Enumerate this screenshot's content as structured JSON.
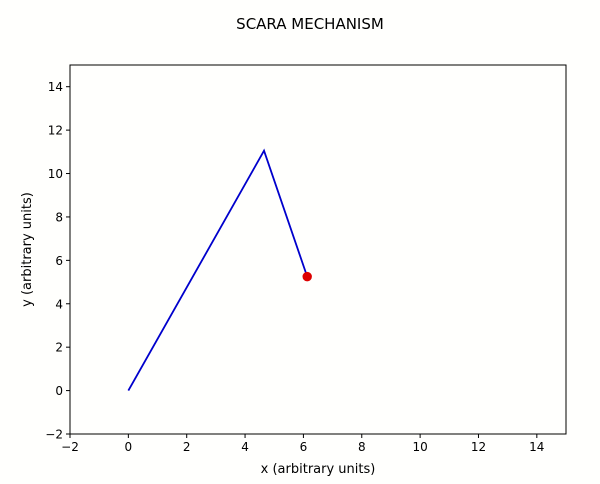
{
  "chart_data": {
    "type": "line",
    "title": "SCARA MECHANISM",
    "xlabel": "x (arbitrary units)",
    "ylabel": "y (arbitrary units)",
    "xlim": [
      -2,
      15
    ],
    "ylim": [
      -2,
      15
    ],
    "x_ticks": [
      -2,
      0,
      2,
      4,
      6,
      8,
      10,
      12,
      14
    ],
    "y_ticks": [
      -2,
      0,
      2,
      4,
      6,
      8,
      10,
      12,
      14
    ],
    "grid": false,
    "series": [
      {
        "x": [
          0,
          4.65,
          6.13
        ],
        "y": [
          0,
          11.05,
          5.25
        ],
        "color": "#0000cc"
      }
    ],
    "end_effector": {
      "x": 6.13,
      "y": 5.25,
      "color": "#dd0000"
    }
  }
}
